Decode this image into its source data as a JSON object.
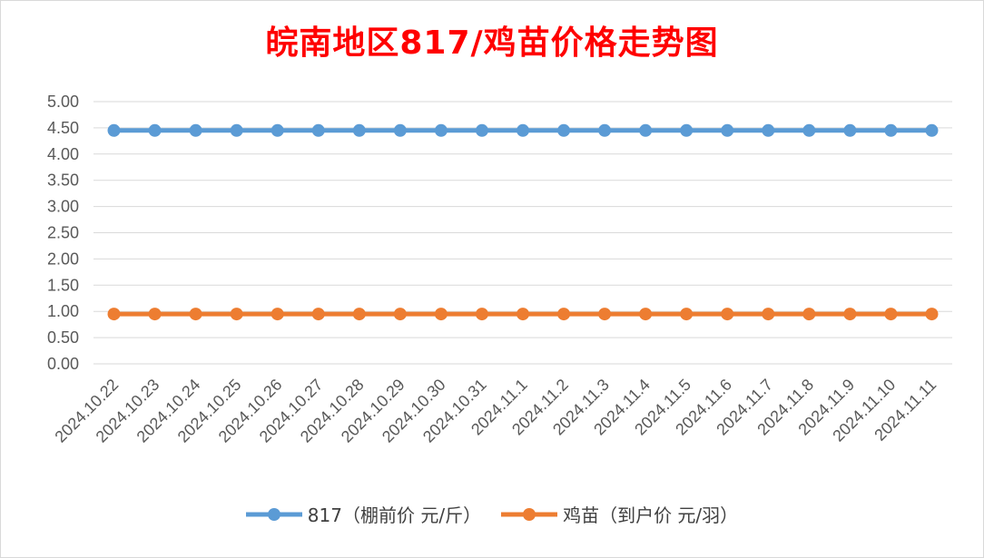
{
  "chart_data": {
    "type": "line",
    "title": "皖南地区817/鸡苗价格走势图",
    "categories": [
      "2024.10.22",
      "2024.10.23",
      "2024.10.24",
      "2024.10.25",
      "2024.10.26",
      "2024.10.27",
      "2024.10.28",
      "2024.10.29",
      "2024.10.30",
      "2024.10.31",
      "2024.11.1",
      "2024.11.2",
      "2024.11.3",
      "2024.11.4",
      "2024.11.5",
      "2024.11.6",
      "2024.11.7",
      "2024.11.8",
      "2024.11.9",
      "2024.11.10",
      "2024.11.11"
    ],
    "series": [
      {
        "name": "817（棚前价 元/斤）",
        "color": "#5b9bd5",
        "values": [
          4.45,
          4.45,
          4.45,
          4.45,
          4.45,
          4.45,
          4.45,
          4.45,
          4.45,
          4.45,
          4.45,
          4.45,
          4.45,
          4.45,
          4.45,
          4.45,
          4.45,
          4.45,
          4.45,
          4.45,
          4.45
        ]
      },
      {
        "name": "鸡苗（到户价 元/羽）",
        "color": "#ed7d31",
        "values": [
          0.95,
          0.95,
          0.95,
          0.95,
          0.95,
          0.95,
          0.95,
          0.95,
          0.95,
          0.95,
          0.95,
          0.95,
          0.95,
          0.95,
          0.95,
          0.95,
          0.95,
          0.95,
          0.95,
          0.95,
          0.95
        ]
      }
    ],
    "yticks": [
      "0.00",
      "0.50",
      "1.00",
      "1.50",
      "2.00",
      "2.50",
      "3.00",
      "3.50",
      "4.00",
      "4.50",
      "5.00"
    ],
    "ylim": [
      0,
      5
    ],
    "xlabel": "",
    "ylabel": "",
    "grid": true,
    "legend": "bottom"
  }
}
